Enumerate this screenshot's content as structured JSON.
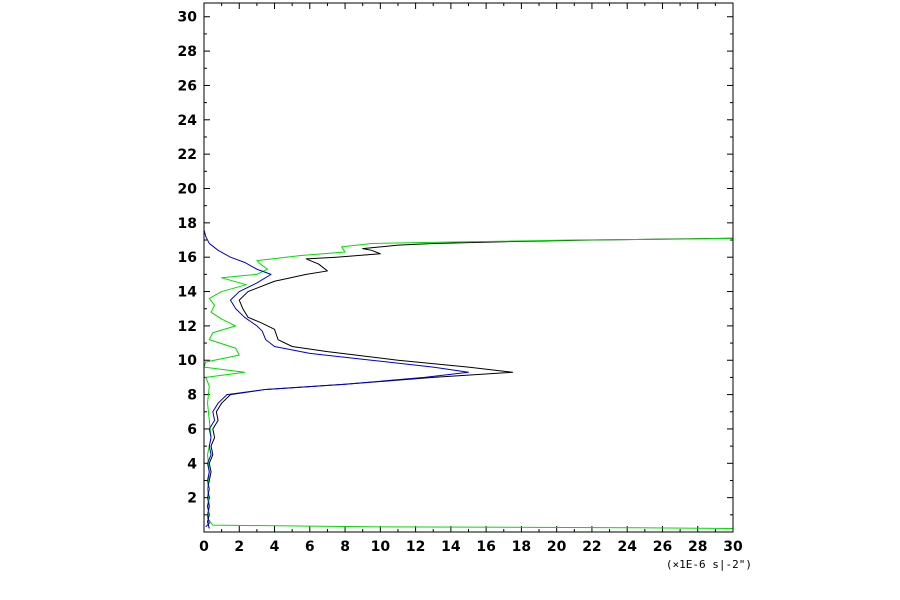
{
  "chart_data": {
    "type": "line",
    "title": "",
    "xlabel": "(×1E-6 s|-2\")",
    "ylabel": "",
    "xlim": [
      0,
      30
    ],
    "ylim": [
      0,
      30.8
    ],
    "x_ticks": [
      "0",
      "2",
      "4",
      "6",
      "8",
      "10",
      "12",
      "14",
      "16",
      "18",
      "20",
      "22",
      "24",
      "26",
      "28",
      "30"
    ],
    "y_ticks": [
      "2",
      "4",
      "6",
      "8",
      "10",
      "12",
      "14",
      "16",
      "18",
      "20",
      "22",
      "24",
      "26",
      "28",
      "30"
    ],
    "grid": false,
    "colors": {
      "black": "#000000",
      "green": "#00dd00",
      "blue": "#0000cc"
    },
    "series": [
      {
        "color": "#000000",
        "points": [
          [
            0.3,
            0.2
          ],
          [
            0.2,
            0.6
          ],
          [
            0.3,
            1.0
          ],
          [
            0.2,
            1.5
          ],
          [
            0.3,
            2.0
          ],
          [
            0.2,
            2.5
          ],
          [
            0.3,
            3.0
          ],
          [
            0.4,
            3.5
          ],
          [
            0.3,
            4.0
          ],
          [
            0.5,
            4.5
          ],
          [
            0.4,
            5.0
          ],
          [
            0.6,
            5.5
          ],
          [
            0.5,
            6.0
          ],
          [
            0.8,
            6.5
          ],
          [
            0.7,
            7.0
          ],
          [
            1.0,
            7.5
          ],
          [
            1.5,
            8.0
          ],
          [
            3.5,
            8.3
          ],
          [
            8.0,
            8.6
          ],
          [
            13.0,
            9.0
          ],
          [
            17.5,
            9.3
          ],
          [
            15.0,
            9.6
          ],
          [
            11.0,
            10.0
          ],
          [
            7.0,
            10.5
          ],
          [
            5.0,
            10.8
          ],
          [
            4.2,
            11.2
          ],
          [
            4.0,
            11.8
          ],
          [
            3.2,
            12.2
          ],
          [
            2.5,
            12.5
          ],
          [
            2.2,
            13.0
          ],
          [
            2.0,
            13.5
          ],
          [
            2.5,
            14.0
          ],
          [
            4.0,
            14.6
          ],
          [
            5.8,
            15.0
          ],
          [
            7.0,
            15.2
          ],
          [
            6.5,
            15.6
          ],
          [
            5.8,
            15.9
          ],
          [
            7.5,
            16.0
          ],
          [
            10.0,
            16.2
          ],
          [
            9.5,
            16.4
          ],
          [
            9.0,
            16.5
          ],
          [
            10.0,
            16.6
          ],
          [
            11.0,
            16.7
          ],
          [
            13.0,
            16.8
          ],
          [
            17.0,
            16.9
          ],
          [
            22.0,
            17.0
          ],
          [
            30.0,
            17.1
          ]
        ]
      },
      {
        "color": "#00dd00",
        "points": [
          [
            30.0,
            0.2
          ],
          [
            24.0,
            0.25
          ],
          [
            10.0,
            0.3
          ],
          [
            0.5,
            0.4
          ],
          [
            0.2,
            0.8
          ],
          [
            0.3,
            1.5
          ],
          [
            0.2,
            2.5
          ],
          [
            0.3,
            3.5
          ],
          [
            0.2,
            4.5
          ],
          [
            0.4,
            5.5
          ],
          [
            0.3,
            6.5
          ],
          [
            0.2,
            7.5
          ],
          [
            0.3,
            8.5
          ],
          [
            0.1,
            9.0
          ],
          [
            2.3,
            9.3
          ],
          [
            0.0,
            9.6
          ],
          [
            0.1,
            9.9
          ],
          [
            2.0,
            10.3
          ],
          [
            1.8,
            10.7
          ],
          [
            0.3,
            11.2
          ],
          [
            0.5,
            11.6
          ],
          [
            1.8,
            12.0
          ],
          [
            1.0,
            12.4
          ],
          [
            0.4,
            12.8
          ],
          [
            0.6,
            13.2
          ],
          [
            0.3,
            13.6
          ],
          [
            1.0,
            14.0
          ],
          [
            2.4,
            14.4
          ],
          [
            1.0,
            14.8
          ],
          [
            3.0,
            15.0
          ],
          [
            3.6,
            15.3
          ],
          [
            3.2,
            15.6
          ],
          [
            3.0,
            15.8
          ],
          [
            5.5,
            16.1
          ],
          [
            8.0,
            16.3
          ],
          [
            7.8,
            16.6
          ],
          [
            9.5,
            16.8
          ],
          [
            15.0,
            16.9
          ],
          [
            21.0,
            17.0
          ],
          [
            27.0,
            17.05
          ],
          [
            30.0,
            17.1
          ]
        ]
      },
      {
        "color": "#0000cc",
        "points": [
          [
            0.1,
            0.3
          ],
          [
            0.3,
            0.5
          ],
          [
            0.2,
            1.0
          ],
          [
            0.3,
            1.5
          ],
          [
            0.2,
            2.0
          ],
          [
            0.3,
            2.5
          ],
          [
            0.2,
            3.0
          ],
          [
            0.3,
            3.5
          ],
          [
            0.2,
            4.0
          ],
          [
            0.4,
            4.5
          ],
          [
            0.3,
            5.0
          ],
          [
            0.4,
            5.5
          ],
          [
            0.3,
            6.0
          ],
          [
            0.6,
            6.5
          ],
          [
            0.5,
            7.0
          ],
          [
            0.8,
            7.5
          ],
          [
            1.3,
            8.0
          ],
          [
            3.5,
            8.3
          ],
          [
            8.0,
            8.6
          ],
          [
            12.5,
            9.0
          ],
          [
            15.0,
            9.3
          ],
          [
            13.0,
            9.6
          ],
          [
            9.5,
            10.0
          ],
          [
            6.0,
            10.4
          ],
          [
            4.0,
            10.8
          ],
          [
            3.5,
            11.2
          ],
          [
            3.3,
            11.7
          ],
          [
            3.0,
            12.0
          ],
          [
            2.3,
            12.5
          ],
          [
            1.8,
            13.0
          ],
          [
            1.5,
            13.5
          ],
          [
            2.0,
            14.0
          ],
          [
            3.0,
            14.5
          ],
          [
            3.8,
            15.0
          ],
          [
            3.0,
            15.3
          ],
          [
            2.3,
            15.7
          ],
          [
            1.5,
            16.0
          ],
          [
            0.8,
            16.4
          ],
          [
            0.3,
            16.8
          ],
          [
            0.1,
            17.2
          ],
          [
            0.0,
            17.6
          ],
          [
            0.0,
            18.0
          ],
          [
            0.0,
            18.5
          ],
          [
            0.0,
            26.0
          ],
          [
            0.0,
            29.0
          ],
          [
            0.0,
            30.8
          ]
        ]
      }
    ]
  }
}
